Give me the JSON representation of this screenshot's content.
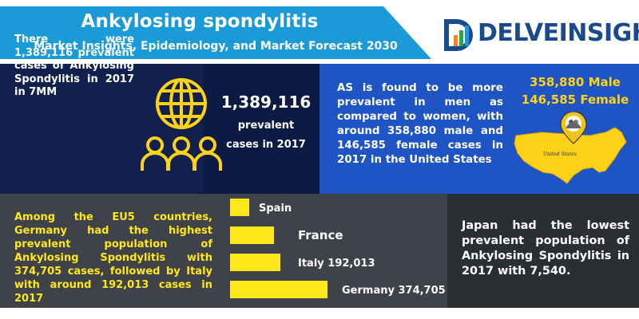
{
  "header": {
    "title": "Ankylosing spondylitis",
    "subtitle": "Market Insights, Epidemiology, and Market Forecast 2030",
    "logo_text": "DELVEINSIGHT"
  },
  "panel_7mm": {
    "text": "There were 1,389,116 prevalent cases of Ankylosing Spondylitis in 2017 in 7MM",
    "icon": "globe-people-icon"
  },
  "panel_total": {
    "number": "1,389,116",
    "line1": "prevalent",
    "line2": "cases in 2017"
  },
  "panel_us": {
    "text": "AS is found to be more prevalent in men as compared to women, with around 358,880 male and 146,585 female cases in 2017 in the United States",
    "male": "358,880 Male",
    "female": "146,585 Female",
    "map_label": "United States",
    "icon": "location-pin-icon"
  },
  "panel_eu5": {
    "text": "Among the EU5 countries, Germany had the highest prevalent population of Ankylosing Spondylitis with 374,705 cases, followed by Italy with around 192,013 cases in 2017"
  },
  "chart_data": {
    "type": "bar",
    "orientation": "horizontal",
    "categories": [
      "Spain",
      "France",
      "Italy",
      "Germany"
    ],
    "labels": [
      "Spain",
      "France",
      "Italy 192,013",
      "Germany 374,705"
    ],
    "values": [
      null,
      null,
      192013,
      374705
    ],
    "bar_color": "#ffe81a"
  },
  "panel_japan": {
    "text": "Japan had the lowest prevalent population of Ankylosing Spondylitis in 2017 with 7,540."
  },
  "colors": {
    "header_band": "#1a9bd7",
    "dark_navy": "#12204e",
    "blue_panel": "#1e54c4",
    "gray_panel": "#3f4349",
    "dark_gray_panel": "#2b2f34",
    "accent_yellow": "#ffe81a"
  }
}
